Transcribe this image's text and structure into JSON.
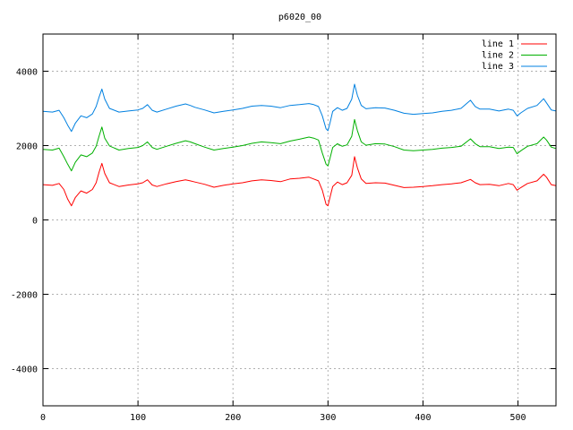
{
  "chart_data": {
    "type": "line",
    "title": "p6020_00",
    "xlabel": "",
    "ylabel": "",
    "xlim": [
      0,
      540
    ],
    "ylim": [
      -5000,
      5000
    ],
    "x_ticks": [
      0,
      100,
      200,
      300,
      400,
      500
    ],
    "y_ticks": [
      -4000,
      -2000,
      0,
      2000,
      4000
    ],
    "grid": true,
    "legend_position": "top-right",
    "series": [
      {
        "name": "line 1",
        "color": "#ff0000",
        "points": [
          [
            0,
            950
          ],
          [
            10,
            930
          ],
          [
            17,
            980
          ],
          [
            22,
            820
          ],
          [
            26,
            560
          ],
          [
            30,
            380
          ],
          [
            34,
            600
          ],
          [
            40,
            780
          ],
          [
            46,
            720
          ],
          [
            52,
            820
          ],
          [
            56,
            1000
          ],
          [
            59,
            1280
          ],
          [
            62,
            1520
          ],
          [
            65,
            1250
          ],
          [
            70,
            1000
          ],
          [
            80,
            900
          ],
          [
            90,
            940
          ],
          [
            100,
            970
          ],
          [
            105,
            1000
          ],
          [
            110,
            1080
          ],
          [
            115,
            940
          ],
          [
            120,
            900
          ],
          [
            130,
            970
          ],
          [
            140,
            1030
          ],
          [
            150,
            1080
          ],
          [
            155,
            1050
          ],
          [
            160,
            1020
          ],
          [
            170,
            960
          ],
          [
            180,
            880
          ],
          [
            190,
            930
          ],
          [
            200,
            970
          ],
          [
            210,
            1000
          ],
          [
            220,
            1050
          ],
          [
            230,
            1080
          ],
          [
            240,
            1060
          ],
          [
            250,
            1030
          ],
          [
            260,
            1100
          ],
          [
            270,
            1120
          ],
          [
            280,
            1150
          ],
          [
            285,
            1100
          ],
          [
            290,
            1050
          ],
          [
            294,
            800
          ],
          [
            298,
            420
          ],
          [
            300,
            380
          ],
          [
            302,
            600
          ],
          [
            305,
            900
          ],
          [
            310,
            1020
          ],
          [
            315,
            950
          ],
          [
            320,
            1000
          ],
          [
            325,
            1200
          ],
          [
            328,
            1700
          ],
          [
            331,
            1400
          ],
          [
            335,
            1100
          ],
          [
            340,
            980
          ],
          [
            350,
            1000
          ],
          [
            360,
            990
          ],
          [
            370,
            930
          ],
          [
            380,
            870
          ],
          [
            390,
            880
          ],
          [
            400,
            900
          ],
          [
            410,
            920
          ],
          [
            420,
            950
          ],
          [
            430,
            970
          ],
          [
            440,
            1000
          ],
          [
            450,
            1090
          ],
          [
            455,
            1000
          ],
          [
            460,
            950
          ],
          [
            470,
            960
          ],
          [
            480,
            920
          ],
          [
            490,
            980
          ],
          [
            495,
            950
          ],
          [
            499,
            800
          ],
          [
            503,
            870
          ],
          [
            510,
            980
          ],
          [
            520,
            1050
          ],
          [
            527,
            1230
          ],
          [
            530,
            1150
          ],
          [
            535,
            950
          ],
          [
            540,
            920
          ]
        ]
      },
      {
        "name": "line 2",
        "color": "#00b000",
        "points": [
          [
            0,
            1900
          ],
          [
            10,
            1880
          ],
          [
            17,
            1930
          ],
          [
            22,
            1700
          ],
          [
            26,
            1500
          ],
          [
            30,
            1320
          ],
          [
            34,
            1550
          ],
          [
            40,
            1750
          ],
          [
            46,
            1700
          ],
          [
            52,
            1800
          ],
          [
            56,
            1980
          ],
          [
            59,
            2250
          ],
          [
            62,
            2500
          ],
          [
            65,
            2200
          ],
          [
            70,
            1990
          ],
          [
            80,
            1880
          ],
          [
            90,
            1920
          ],
          [
            100,
            1950
          ],
          [
            105,
            2000
          ],
          [
            110,
            2100
          ],
          [
            115,
            1950
          ],
          [
            120,
            1900
          ],
          [
            130,
            1980
          ],
          [
            140,
            2060
          ],
          [
            150,
            2130
          ],
          [
            155,
            2100
          ],
          [
            160,
            2050
          ],
          [
            170,
            1960
          ],
          [
            180,
            1880
          ],
          [
            190,
            1920
          ],
          [
            200,
            1960
          ],
          [
            210,
            2000
          ],
          [
            220,
            2060
          ],
          [
            230,
            2100
          ],
          [
            240,
            2080
          ],
          [
            250,
            2050
          ],
          [
            260,
            2120
          ],
          [
            270,
            2170
          ],
          [
            280,
            2230
          ],
          [
            285,
            2200
          ],
          [
            290,
            2150
          ],
          [
            294,
            1800
          ],
          [
            298,
            1500
          ],
          [
            300,
            1450
          ],
          [
            302,
            1650
          ],
          [
            305,
            1950
          ],
          [
            310,
            2050
          ],
          [
            315,
            1980
          ],
          [
            320,
            2020
          ],
          [
            325,
            2250
          ],
          [
            328,
            2700
          ],
          [
            331,
            2400
          ],
          [
            335,
            2100
          ],
          [
            340,
            2010
          ],
          [
            350,
            2050
          ],
          [
            360,
            2040
          ],
          [
            370,
            1970
          ],
          [
            380,
            1880
          ],
          [
            390,
            1860
          ],
          [
            400,
            1880
          ],
          [
            410,
            1900
          ],
          [
            420,
            1930
          ],
          [
            430,
            1950
          ],
          [
            440,
            1980
          ],
          [
            450,
            2180
          ],
          [
            455,
            2050
          ],
          [
            460,
            1970
          ],
          [
            470,
            1970
          ],
          [
            480,
            1920
          ],
          [
            490,
            1960
          ],
          [
            495,
            1950
          ],
          [
            499,
            1780
          ],
          [
            503,
            1860
          ],
          [
            510,
            1980
          ],
          [
            520,
            2050
          ],
          [
            527,
            2230
          ],
          [
            530,
            2150
          ],
          [
            535,
            1960
          ],
          [
            540,
            1920
          ]
        ]
      },
      {
        "name": "line 3",
        "color": "#0080e0",
        "points": [
          [
            0,
            2920
          ],
          [
            10,
            2900
          ],
          [
            17,
            2950
          ],
          [
            22,
            2750
          ],
          [
            26,
            2550
          ],
          [
            30,
            2380
          ],
          [
            34,
            2600
          ],
          [
            40,
            2800
          ],
          [
            46,
            2750
          ],
          [
            52,
            2850
          ],
          [
            56,
            3050
          ],
          [
            59,
            3300
          ],
          [
            62,
            3520
          ],
          [
            65,
            3250
          ],
          [
            70,
            3000
          ],
          [
            80,
            2900
          ],
          [
            90,
            2930
          ],
          [
            100,
            2960
          ],
          [
            105,
            3000
          ],
          [
            110,
            3100
          ],
          [
            115,
            2950
          ],
          [
            120,
            2900
          ],
          [
            130,
            2980
          ],
          [
            140,
            3060
          ],
          [
            150,
            3120
          ],
          [
            155,
            3080
          ],
          [
            160,
            3030
          ],
          [
            170,
            2960
          ],
          [
            180,
            2880
          ],
          [
            190,
            2920
          ],
          [
            200,
            2960
          ],
          [
            210,
            3000
          ],
          [
            220,
            3060
          ],
          [
            230,
            3080
          ],
          [
            240,
            3060
          ],
          [
            250,
            3020
          ],
          [
            260,
            3080
          ],
          [
            270,
            3100
          ],
          [
            280,
            3130
          ],
          [
            285,
            3100
          ],
          [
            290,
            3050
          ],
          [
            294,
            2800
          ],
          [
            298,
            2450
          ],
          [
            300,
            2400
          ],
          [
            302,
            2600
          ],
          [
            305,
            2920
          ],
          [
            310,
            3020
          ],
          [
            315,
            2950
          ],
          [
            320,
            3000
          ],
          [
            325,
            3250
          ],
          [
            328,
            3650
          ],
          [
            331,
            3350
          ],
          [
            335,
            3080
          ],
          [
            340,
            2990
          ],
          [
            350,
            3020
          ],
          [
            360,
            3010
          ],
          [
            370,
            2950
          ],
          [
            380,
            2870
          ],
          [
            390,
            2840
          ],
          [
            400,
            2860
          ],
          [
            410,
            2880
          ],
          [
            420,
            2920
          ],
          [
            430,
            2950
          ],
          [
            440,
            3000
          ],
          [
            450,
            3220
          ],
          [
            455,
            3050
          ],
          [
            460,
            2980
          ],
          [
            470,
            2980
          ],
          [
            480,
            2930
          ],
          [
            490,
            2980
          ],
          [
            495,
            2950
          ],
          [
            499,
            2800
          ],
          [
            503,
            2880
          ],
          [
            510,
            3000
          ],
          [
            520,
            3080
          ],
          [
            527,
            3260
          ],
          [
            530,
            3150
          ],
          [
            535,
            2960
          ],
          [
            540,
            2930
          ]
        ]
      }
    ]
  }
}
